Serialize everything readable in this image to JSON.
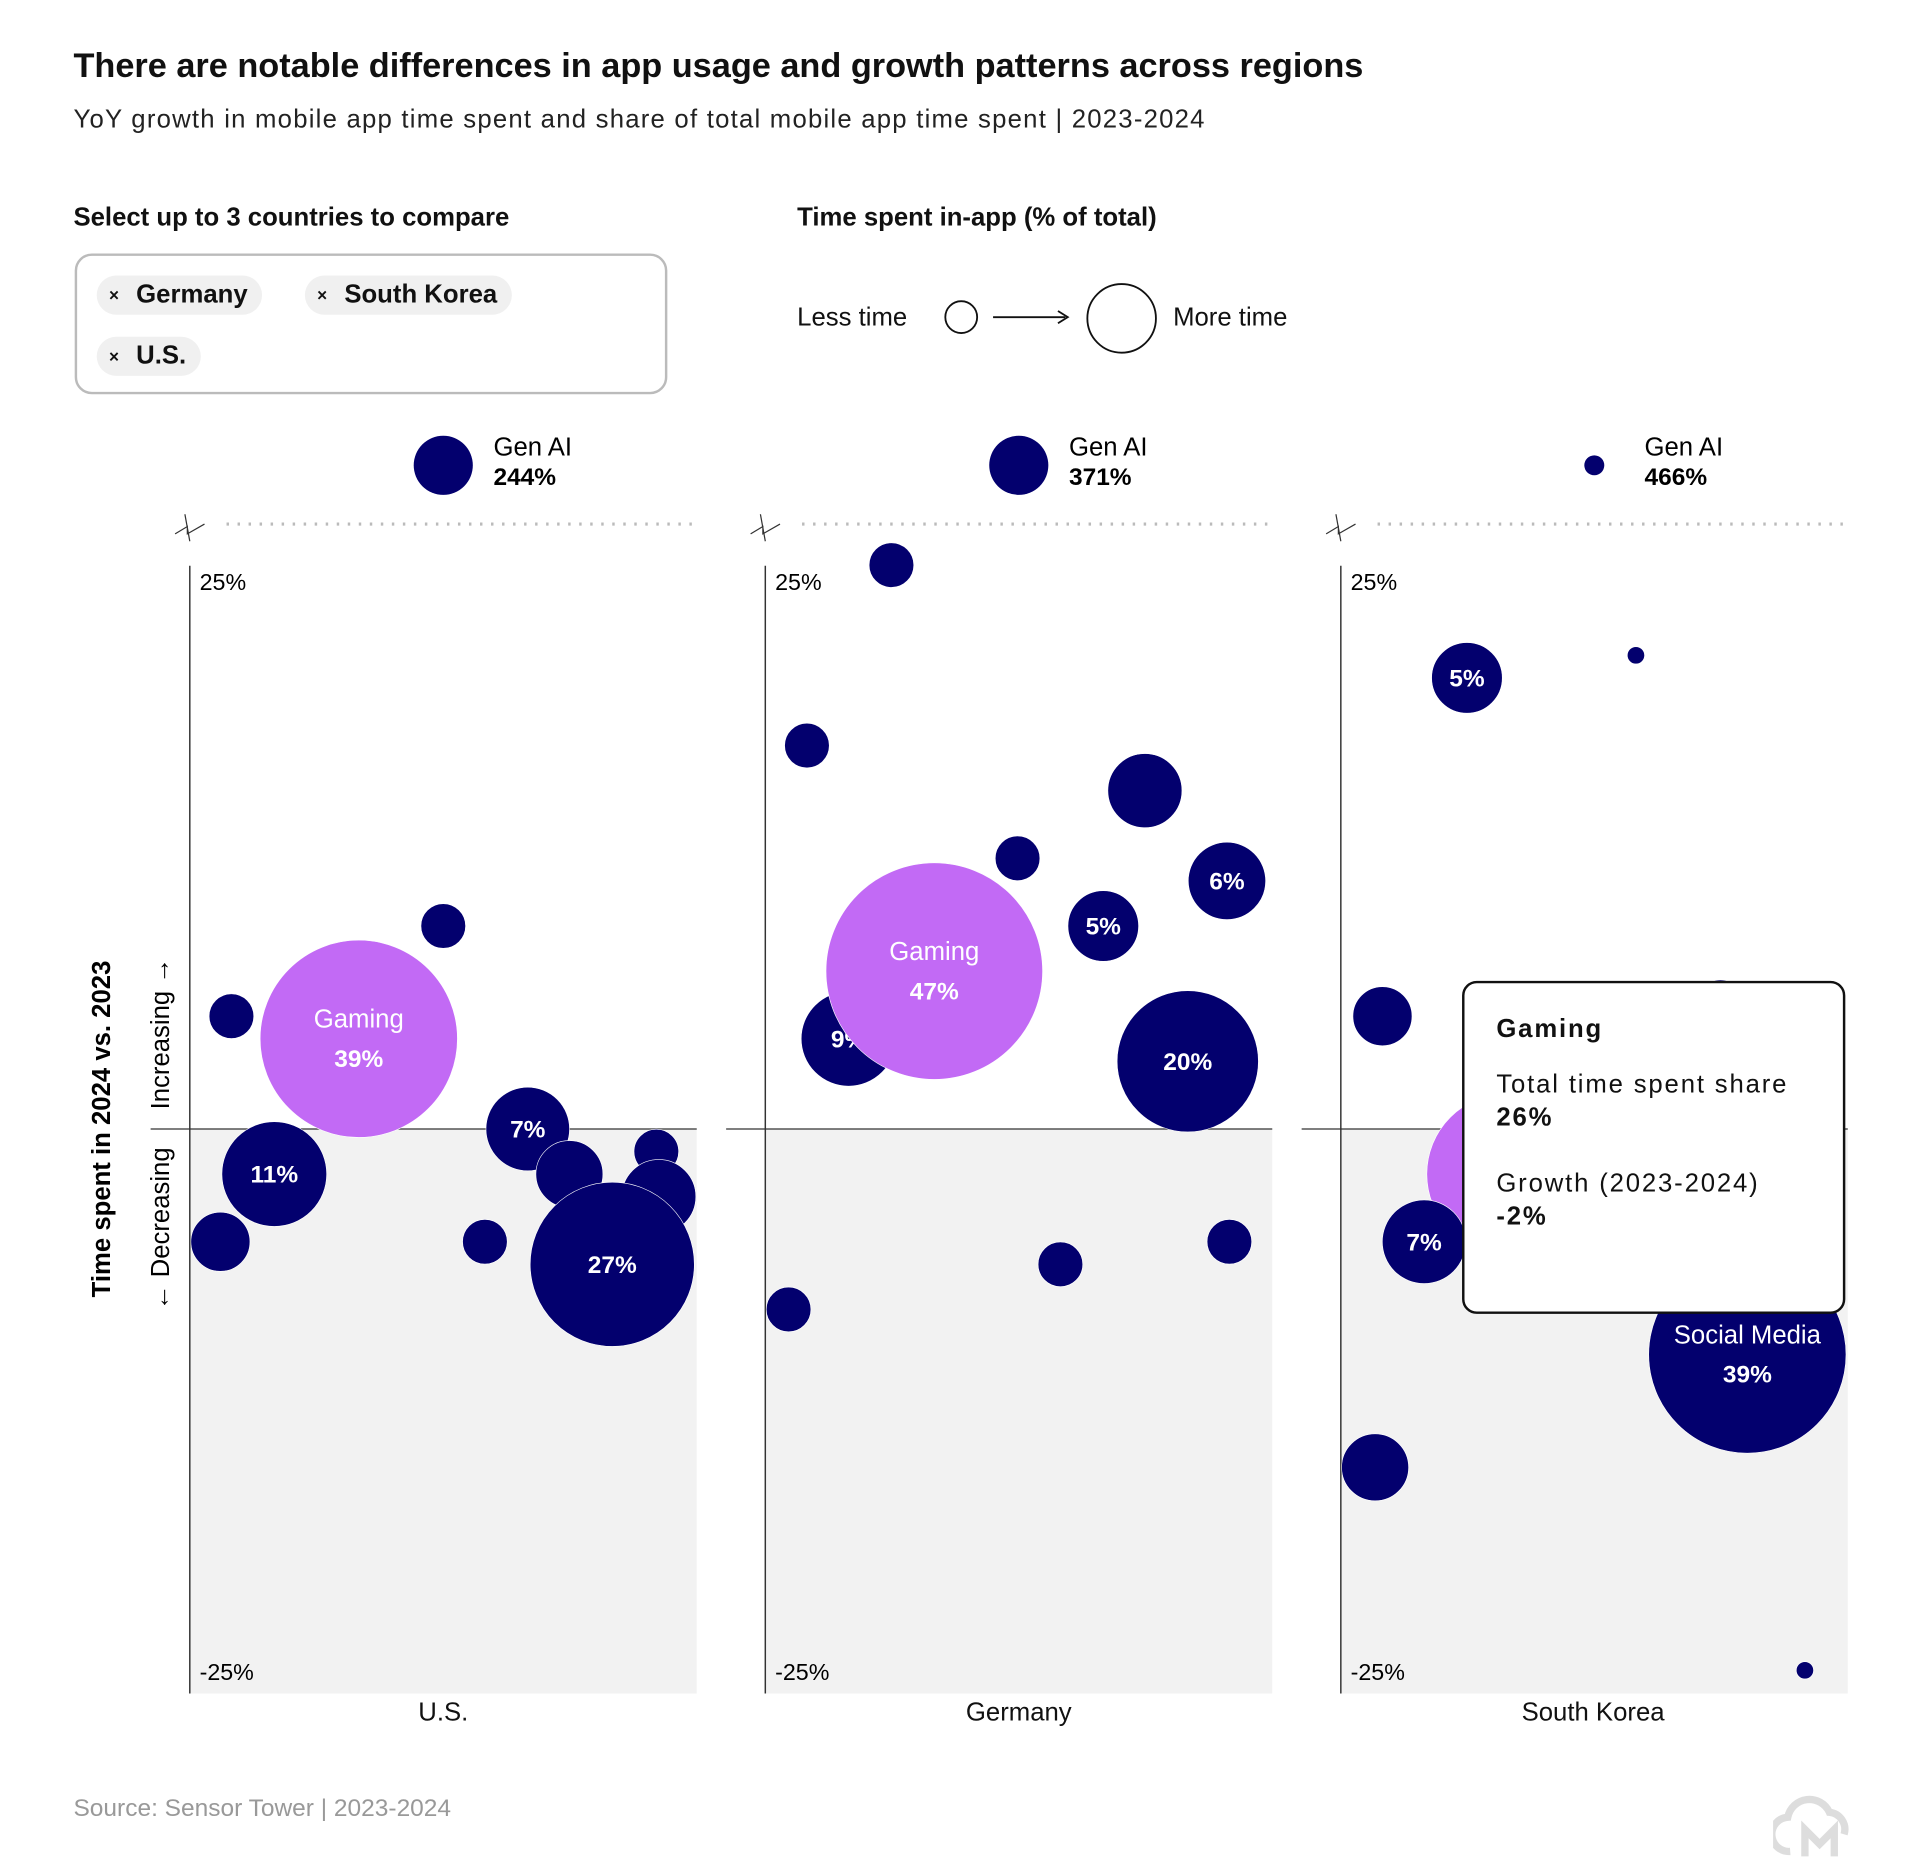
{
  "header": {
    "title": "There are notable differences in app usage and growth patterns across regions",
    "subtitle": "YoY growth in mobile app time spent and share of total mobile app time spent | 2023-2024"
  },
  "selector": {
    "label": "Select up to 3 countries to compare",
    "chips": [
      {
        "label": "Germany"
      },
      {
        "label": "South Korea"
      },
      {
        "label": "U.S."
      }
    ],
    "remove_glyph": "×"
  },
  "size_legend": {
    "title": "Time spent in-app (% of total)",
    "less": "Less time",
    "more": "More time"
  },
  "tooltip": {
    "title": "Gaming",
    "share_label": "Total time spent share",
    "share_value": "26%",
    "growth_label": "Growth (2023-2024)",
    "growth_value": "-2%"
  },
  "source": "Source: Sensor Tower | 2023-2024",
  "colors": {
    "navy": "#03006e",
    "gaming": "#c26af5",
    "negative_area": "#f2f2f2"
  },
  "chart_data": {
    "type": "scatter",
    "subtype": "bubble",
    "ylabel": "Time spent in 2024 vs. 2023",
    "y_increasing": "Increasing →",
    "y_decreasing": "← Decreasing",
    "y_ticks": [
      "25%",
      "-25%"
    ],
    "ylim": [
      -25,
      25
    ],
    "size": "share of total time spent (%)",
    "panels": [
      {
        "country": "U.S.",
        "outlier": {
          "name": "Gen AI",
          "growth_label": "244%",
          "growth": 244,
          "share": 3.5
        },
        "bubbles": [
          {
            "growth": 9,
            "share": 2
          },
          {
            "growth": 5,
            "share": 2
          },
          {
            "name": "Gaming",
            "share_label": "39%",
            "growth": 4,
            "share": 39
          },
          {
            "share_label": "7%",
            "growth": 0,
            "share": 7
          },
          {
            "share_label": "11%",
            "growth": -2,
            "share": 11
          },
          {
            "growth": -1,
            "share": 2
          },
          {
            "growth": -2,
            "share": 4.5
          },
          {
            "growth": -3,
            "share": 5.5
          },
          {
            "growth": -5,
            "share": 3.5
          },
          {
            "growth": -5,
            "share": 2
          },
          {
            "share_label": "27%",
            "growth": -6,
            "share": 27
          }
        ]
      },
      {
        "country": "Germany",
        "outlier": {
          "name": "Gen AI",
          "growth_label": "371%",
          "growth": 371,
          "share": 3.5
        },
        "bubbles": [
          {
            "growth": 25,
            "share": 2
          },
          {
            "growth": 17,
            "share": 2
          },
          {
            "growth": 15,
            "share": 5.5
          },
          {
            "growth": 12,
            "share": 2
          },
          {
            "share_label": "6%",
            "growth": 11,
            "share": 6
          },
          {
            "share_label": "5%",
            "growth": 9,
            "share": 5
          },
          {
            "share_label": "9%",
            "growth": 4,
            "share": 9
          },
          {
            "name": "Gaming",
            "share_label": "47%",
            "growth": 7,
            "share": 47
          },
          {
            "share_label": "20%",
            "growth": 3,
            "share": 20
          },
          {
            "growth": -6,
            "share": 2
          },
          {
            "growth": -5,
            "share": 2
          },
          {
            "growth": -8,
            "share": 2
          }
        ]
      },
      {
        "country": "South Korea",
        "outlier": {
          "name": "Gen AI",
          "growth_label": "466%",
          "growth": 466,
          "share": 0.4
        },
        "bubbles": [
          {
            "share_label": "5%",
            "growth": 20,
            "share": 5
          },
          {
            "growth": 21,
            "share": 0.3
          },
          {
            "growth": 5,
            "share": 3.5
          },
          {
            "growth": 5.5,
            "share": 2.5
          },
          {
            "name": "Gaming",
            "growth": -2,
            "share": 26
          },
          {
            "share_label": "7%",
            "growth": -5,
            "share": 7
          },
          {
            "name": "Social Media",
            "share_label": "39%",
            "growth": -10,
            "share": 39
          },
          {
            "growth": -15,
            "share": 4.5
          },
          {
            "growth": -24,
            "share": 0.3
          }
        ]
      }
    ]
  }
}
